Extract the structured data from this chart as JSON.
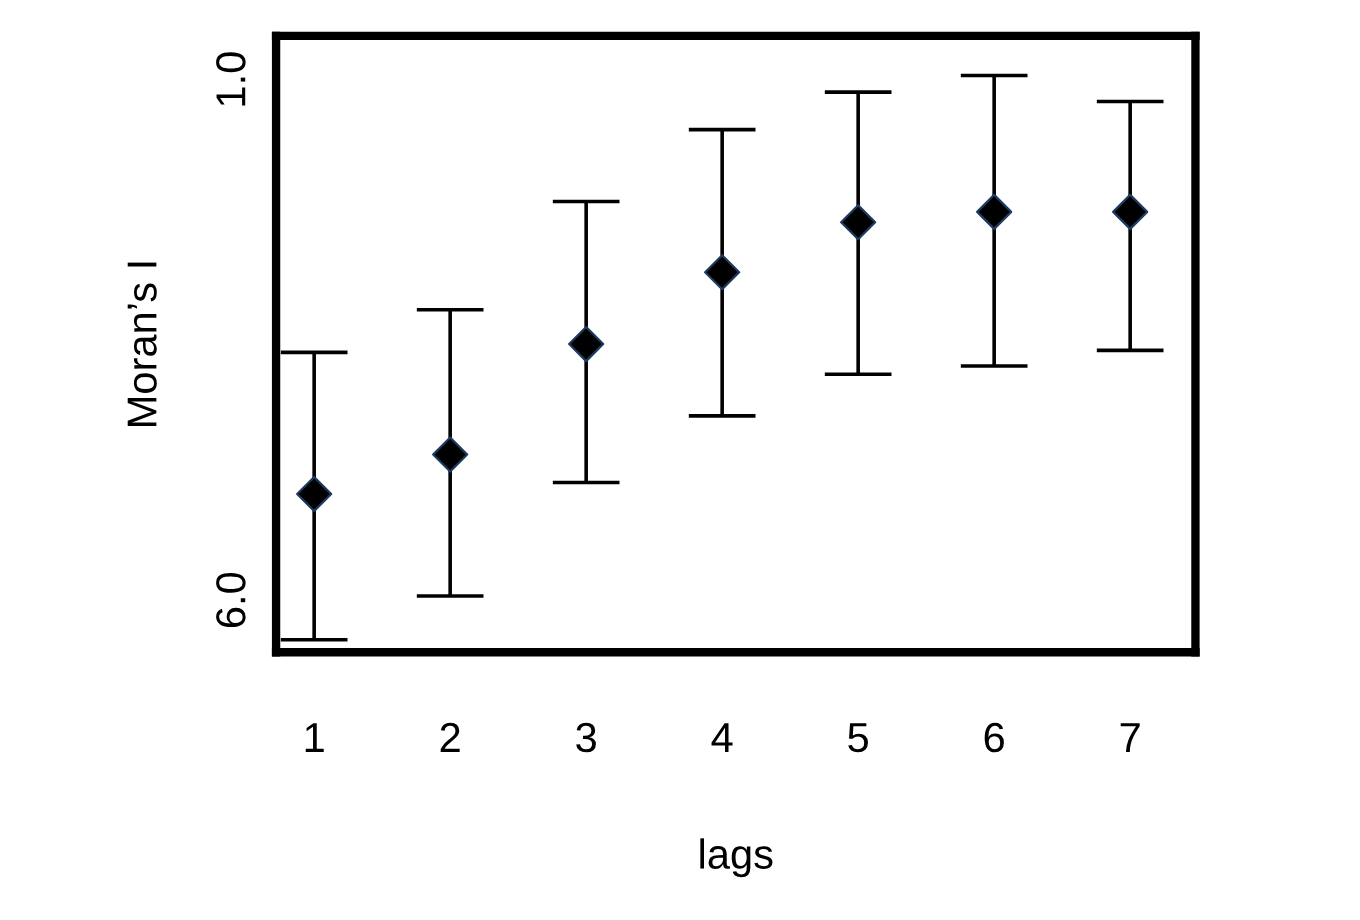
{
  "chart_data": {
    "type": "scatter",
    "xlabel": "lags",
    "ylabel": "Moran’s I",
    "categories": [
      "1",
      "2",
      "3",
      "4",
      "5",
      "6",
      "7"
    ],
    "values": [
      4.98,
      4.6,
      3.54,
      2.85,
      2.37,
      2.27,
      2.27
    ],
    "errors": [
      [
        3.62,
        6.38
      ],
      [
        3.21,
        5.96
      ],
      [
        2.17,
        4.87
      ],
      [
        1.48,
        4.23
      ],
      [
        1.12,
        3.83
      ],
      [
        0.96,
        3.75
      ],
      [
        1.21,
        3.6
      ]
    ],
    "color": "#000000",
    "marker": "diamond",
    "ylim": [
      6.5,
      0.58
    ],
    "yticks": [
      {
        "value": 1,
        "label": "1.0"
      },
      {
        "value": 6,
        "label": "6.0"
      }
    ],
    "grid": false,
    "legend": false
  }
}
